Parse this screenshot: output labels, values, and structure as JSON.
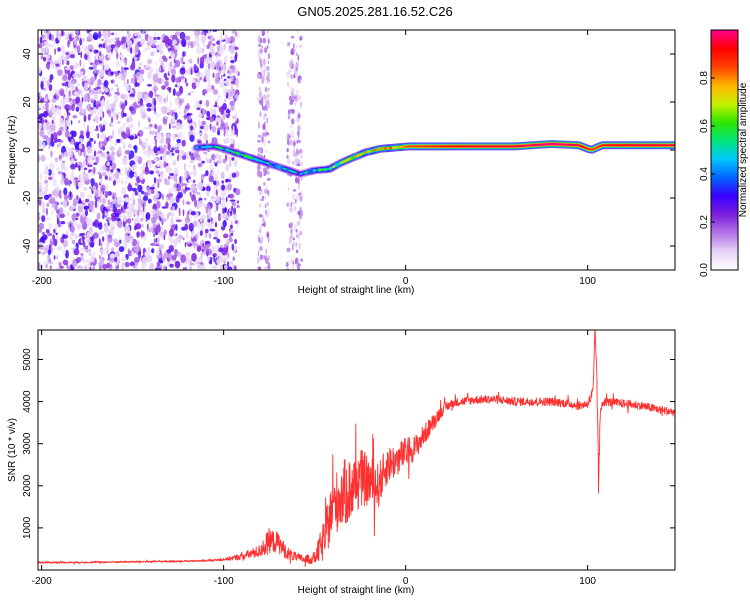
{
  "title": "GN05.2025.281.16.52.C26",
  "chart_data": [
    {
      "type": "heatmap",
      "title": "GN05.2025.281.16.52.C26",
      "xlabel": "Height of straight line (km)",
      "ylabel": "Frequency (Hz)",
      "xlim": [
        -202,
        148
      ],
      "ylim": [
        -50,
        50
      ],
      "xticks": [
        -200,
        -100,
        0,
        100
      ],
      "yticks": [
        -40,
        -20,
        0,
        20,
        40
      ],
      "colorbar": {
        "label": "Normalized spectral amplitude",
        "range": [
          0,
          1
        ],
        "ticks": [
          "0.0",
          "0.2",
          "0.4",
          "0.6",
          "0.8"
        ],
        "colors": [
          "#ffffff",
          "#e6d2f5",
          "#b373e8",
          "#7a1fdc",
          "#3b00ff",
          "#0064ff",
          "#00c8ff",
          "#00e67a",
          "#2ee600",
          "#c8f000",
          "#ffb400",
          "#ff4000",
          "#ff0000",
          "#ff0090"
        ]
      },
      "ridge": [
        {
          "x": -115,
          "y": 1,
          "a": 0.35
        },
        {
          "x": -105,
          "y": 1.5,
          "a": 0.45
        },
        {
          "x": -98,
          "y": 0,
          "a": 0.45
        },
        {
          "x": -90,
          "y": -2,
          "a": 0.5
        },
        {
          "x": -82,
          "y": -4,
          "a": 0.5
        },
        {
          "x": -74,
          "y": -6,
          "a": 0.45
        },
        {
          "x": -66,
          "y": -8,
          "a": 0.45
        },
        {
          "x": -58,
          "y": -10,
          "a": 0.4
        },
        {
          "x": -50,
          "y": -8.5,
          "a": 0.5
        },
        {
          "x": -42,
          "y": -8,
          "a": 0.55
        },
        {
          "x": -36,
          "y": -5.5,
          "a": 0.6
        },
        {
          "x": -30,
          "y": -3.5,
          "a": 0.65
        },
        {
          "x": -22,
          "y": -1,
          "a": 0.7
        },
        {
          "x": -14,
          "y": 0.5,
          "a": 0.75
        },
        {
          "x": -6,
          "y": 1,
          "a": 0.8
        },
        {
          "x": 2,
          "y": 1.5,
          "a": 0.85
        },
        {
          "x": 20,
          "y": 1.5,
          "a": 0.9
        },
        {
          "x": 40,
          "y": 1.5,
          "a": 0.95
        },
        {
          "x": 60,
          "y": 1.5,
          "a": 0.95
        },
        {
          "x": 80,
          "y": 2.5,
          "a": 1.0
        },
        {
          "x": 95,
          "y": 2,
          "a": 0.95
        },
        {
          "x": 102,
          "y": 0,
          "a": 0.85
        },
        {
          "x": 108,
          "y": 2,
          "a": 0.9
        },
        {
          "x": 125,
          "y": 2,
          "a": 0.95
        },
        {
          "x": 148,
          "y": 2,
          "a": 0.95
        }
      ]
    },
    {
      "type": "line",
      "xlabel": "Height of straight line (km)",
      "ylabel": "SNR (10 * v/v)",
      "xlim": [
        -202,
        148
      ],
      "ylim": [
        0,
        5700
      ],
      "xticks": [
        -200,
        -100,
        0,
        100
      ],
      "yticks": [
        1000,
        2000,
        3000,
        4000,
        5000
      ],
      "series": [
        {
          "name": "SNR",
          "color": "#ff3030",
          "x": [
            -202,
            -180,
            -160,
            -140,
            -120,
            -110,
            -100,
            -90,
            -80,
            -75,
            -70,
            -65,
            -60,
            -55,
            -50,
            -45,
            -40,
            -35,
            -30,
            -25,
            -20,
            -15,
            -10,
            -5,
            0,
            5,
            10,
            15,
            20,
            25,
            30,
            40,
            50,
            60,
            70,
            80,
            90,
            95,
            100,
            103,
            104,
            105,
            106,
            107,
            108,
            110,
            120,
            130,
            140,
            148
          ],
          "y": [
            180,
            180,
            190,
            200,
            210,
            220,
            250,
            320,
            450,
            700,
            650,
            400,
            300,
            250,
            280,
            700,
            1500,
            1800,
            1900,
            2200,
            2100,
            2000,
            2500,
            2600,
            2800,
            2900,
            3200,
            3500,
            3800,
            3950,
            4000,
            4050,
            4050,
            4000,
            4000,
            4000,
            3950,
            3900,
            3950,
            4200,
            5600,
            4800,
            2000,
            3700,
            4000,
            4000,
            3950,
            3900,
            3800,
            3750
          ],
          "noise": [
            20,
            20,
            20,
            20,
            20,
            20,
            30,
            80,
            150,
            300,
            250,
            150,
            100,
            100,
            150,
            500,
            700,
            800,
            800,
            700,
            600,
            550,
            450,
            400,
            350,
            300,
            250,
            200,
            150,
            100,
            100,
            100,
            100,
            100,
            100,
            100,
            100,
            100,
            100,
            200,
            200,
            300,
            300,
            200,
            120,
            100,
            100,
            100,
            100,
            100
          ]
        }
      ]
    }
  ]
}
